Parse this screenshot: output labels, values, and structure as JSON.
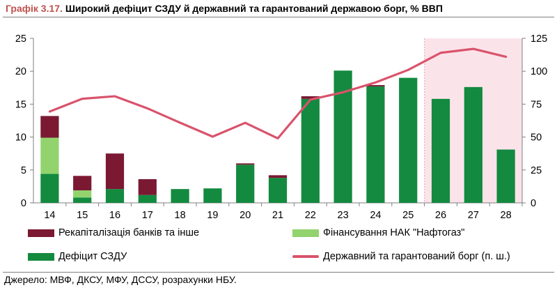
{
  "header": {
    "figure_number": "Графік 3.17.",
    "title_text": "Широкий дефіцит СЗДУ й державний та гарантований державою борг, % ВВП"
  },
  "source": "Джерело: МВФ, ДКСУ, МФУ, ДССУ, розрахунки НБУ.",
  "colors": {
    "recap": "#7b1933",
    "naftogaz": "#92d36e",
    "deficit": "#138a3f",
    "debt": "#d9536b",
    "forecast_shade": "#fbe3ea",
    "axis": "#7f7f7f"
  },
  "chart_data": {
    "type": "bar",
    "stacked": true,
    "categories": [
      "14",
      "15",
      "16",
      "17",
      "18",
      "19",
      "20",
      "21",
      "22",
      "23",
      "24",
      "25",
      "26",
      "27",
      "28"
    ],
    "series": [
      {
        "name": "Дефіцит СЗДУ",
        "key": "deficit",
        "values": [
          4.4,
          0.8,
          2.1,
          1.2,
          2.1,
          2.2,
          5.8,
          3.8,
          15.8,
          20.1,
          17.7,
          19.0,
          15.8,
          17.6,
          8.1
        ]
      },
      {
        "name": "Фінансування НАК \"Нафтогаз\"",
        "key": "naftogaz",
        "values": [
          5.5,
          1.1,
          0,
          0,
          0,
          0,
          0,
          0,
          0,
          0,
          0,
          0,
          0,
          0,
          0
        ]
      },
      {
        "name": "Рекапіталізація банків та інше",
        "key": "recap",
        "values": [
          3.3,
          2.2,
          5.4,
          2.4,
          0,
          0,
          0.2,
          0.4,
          0.4,
          0,
          0.2,
          0,
          0,
          0,
          0
        ]
      }
    ],
    "line_series": {
      "name": "Державний та гарантований борг (п. ш.)",
      "key": "debt",
      "axis": "right",
      "values": [
        69.4,
        79.1,
        81.0,
        71.8,
        60.9,
        50.3,
        60.8,
        49.0,
        78.4,
        84.0,
        91.5,
        101.0,
        114.0,
        117.0,
        111.0
      ]
    },
    "forecast_categories": [
      "26",
      "27",
      "28"
    ],
    "ylim_left": [
      0,
      25
    ],
    "yticks_left": [
      0,
      5,
      10,
      15,
      20,
      25
    ],
    "ylim_right": [
      0,
      125
    ],
    "yticks_right": [
      0,
      25,
      50,
      75,
      100,
      125
    ],
    "legend": [
      {
        "label": "Рекапіталізація банків та інше",
        "key": "recap",
        "kind": "bar"
      },
      {
        "label": "Фінансування НАК \"Нафтогаз\"",
        "key": "naftogaz",
        "kind": "bar"
      },
      {
        "label": "Дефіцит СЗДУ",
        "key": "deficit",
        "kind": "bar"
      },
      {
        "label": "Державний та гарантований борг (п. ш.)",
        "key": "debt",
        "kind": "line"
      }
    ],
    "legend_position": "bottom"
  }
}
